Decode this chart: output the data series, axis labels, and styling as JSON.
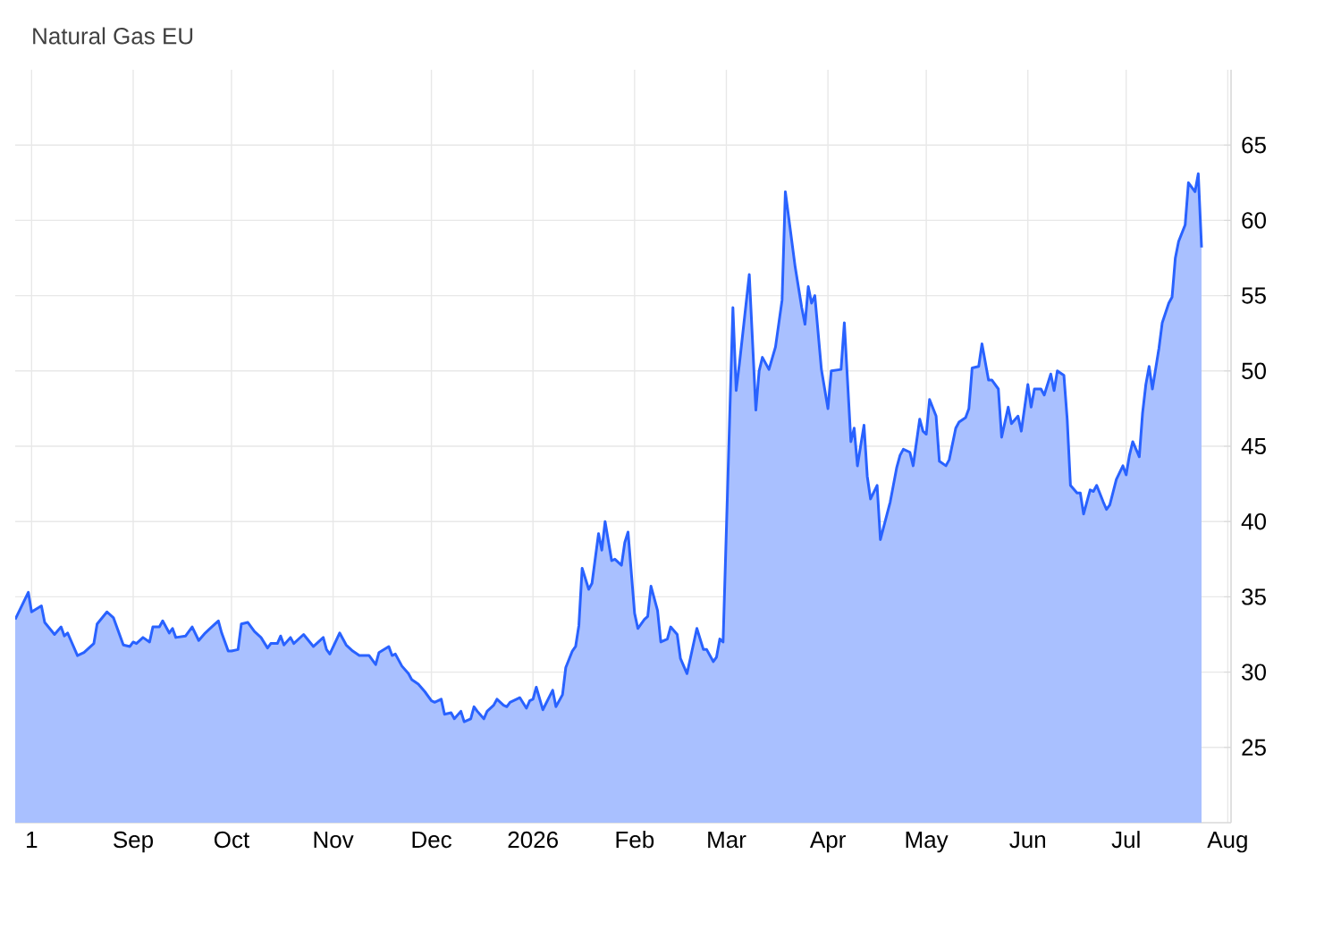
{
  "chart_data": {
    "type": "area",
    "title": "Natural Gas EU",
    "x": [
      "2025-07-27",
      "2025-07-31",
      "2025-08-01",
      "2025-08-04",
      "2025-08-05",
      "2025-08-08",
      "2025-08-10",
      "2025-08-11",
      "2025-08-12",
      "2025-08-13",
      "2025-08-15",
      "2025-08-17",
      "2025-08-20",
      "2025-08-21",
      "2025-08-24",
      "2025-08-26",
      "2025-08-29",
      "2025-08-31",
      "2025-09-01",
      "2025-09-02",
      "2025-09-04",
      "2025-09-06",
      "2025-09-07",
      "2025-09-09",
      "2025-09-10",
      "2025-09-12",
      "2025-09-13",
      "2025-09-14",
      "2025-09-17",
      "2025-09-19",
      "2025-09-21",
      "2025-09-23",
      "2025-09-24",
      "2025-09-26",
      "2025-09-27",
      "2025-09-28",
      "2025-09-30",
      "2025-10-01",
      "2025-10-03",
      "2025-10-04",
      "2025-10-06",
      "2025-10-08",
      "2025-10-10",
      "2025-10-12",
      "2025-10-13",
      "2025-10-15",
      "2025-10-16",
      "2025-10-17",
      "2025-10-19",
      "2025-10-20",
      "2025-10-23",
      "2025-10-26",
      "2025-10-27",
      "2025-10-29",
      "2025-10-30",
      "2025-10-31",
      "2025-11-03",
      "2025-11-05",
      "2025-11-07",
      "2025-11-09",
      "2025-11-12",
      "2025-11-14",
      "2025-11-15",
      "2025-11-18",
      "2025-11-19",
      "2025-11-20",
      "2025-11-22",
      "2025-11-24",
      "2025-11-25",
      "2025-11-27",
      "2025-11-29",
      "2025-12-01",
      "2025-12-02",
      "2025-12-04",
      "2025-12-05",
      "2025-12-07",
      "2025-12-08",
      "2025-12-10",
      "2025-12-11",
      "2025-12-13",
      "2025-12-14",
      "2025-12-15",
      "2025-12-17",
      "2025-12-18",
      "2025-12-20",
      "2025-12-21",
      "2025-12-23",
      "2025-12-24",
      "2025-12-25",
      "2025-12-28",
      "2025-12-30",
      "2025-12-31",
      "2026-01-01",
      "2026-01-02",
      "2026-01-04",
      "2026-01-07",
      "2026-01-08",
      "2026-01-10",
      "2026-01-11",
      "2026-01-13",
      "2026-01-14",
      "2026-01-15",
      "2026-01-16",
      "2026-01-18",
      "2026-01-19",
      "2026-01-21",
      "2026-01-22",
      "2026-01-23",
      "2026-01-25",
      "2026-01-26",
      "2026-01-28",
      "2026-01-29",
      "2026-01-30",
      "2026-02-01",
      "2026-02-02",
      "2026-02-04",
      "2026-02-05",
      "2026-02-06",
      "2026-02-08",
      "2026-02-09",
      "2026-02-11",
      "2026-02-12",
      "2026-02-14",
      "2026-02-15",
      "2026-02-17",
      "2026-02-20",
      "2026-02-22",
      "2026-02-23",
      "2026-02-25",
      "2026-02-26",
      "2026-02-27",
      "2026-02-28",
      "2026-03-03",
      "2026-03-04",
      "2026-03-05",
      "2026-03-08",
      "2026-03-10",
      "2026-03-11",
      "2026-03-12",
      "2026-03-14",
      "2026-03-16",
      "2026-03-18",
      "2026-03-19",
      "2026-03-22",
      "2026-03-24",
      "2026-03-25",
      "2026-03-26",
      "2026-03-27",
      "2026-03-28",
      "2026-03-30",
      "2026-04-01",
      "2026-04-02",
      "2026-04-05",
      "2026-04-06",
      "2026-04-08",
      "2026-04-09",
      "2026-04-10",
      "2026-04-12",
      "2026-04-13",
      "2026-04-14",
      "2026-04-16",
      "2026-04-17",
      "2026-04-20",
      "2026-04-22",
      "2026-04-23",
      "2026-04-24",
      "2026-04-26",
      "2026-04-27",
      "2026-04-29",
      "2026-04-30",
      "2026-05-01",
      "2026-05-02",
      "2026-05-04",
      "2026-05-05",
      "2026-05-07",
      "2026-05-08",
      "2026-05-10",
      "2026-05-11",
      "2026-05-13",
      "2026-05-14",
      "2026-05-15",
      "2026-05-17",
      "2026-05-18",
      "2026-05-20",
      "2026-05-21",
      "2026-05-23",
      "2026-05-24",
      "2026-05-26",
      "2026-05-27",
      "2026-05-29",
      "2026-05-30",
      "2026-06-01",
      "2026-06-02",
      "2026-06-03",
      "2026-06-05",
      "2026-06-06",
      "2026-06-08",
      "2026-06-09",
      "2026-06-10",
      "2026-06-12",
      "2026-06-13",
      "2026-06-14",
      "2026-06-16",
      "2026-06-17",
      "2026-06-18",
      "2026-06-20",
      "2026-06-21",
      "2026-06-22",
      "2026-06-24",
      "2026-06-25",
      "2026-06-26",
      "2026-06-28",
      "2026-06-30",
      "2026-07-01",
      "2026-07-02",
      "2026-07-03",
      "2026-07-05",
      "2026-07-06",
      "2026-07-07",
      "2026-07-08",
      "2026-07-09",
      "2026-07-11",
      "2026-07-12",
      "2026-07-14",
      "2026-07-15",
      "2026-07-16",
      "2026-07-17",
      "2026-07-19",
      "2026-07-20",
      "2026-07-22",
      "2026-07-23",
      "2026-07-24"
    ],
    "series": [
      {
        "color": "#2962ff",
        "values": [
          33.5,
          35.3,
          34.0,
          34.4,
          33.3,
          32.5,
          33.0,
          32.4,
          32.6,
          32.1,
          31.1,
          31.3,
          31.9,
          33.2,
          34.0,
          33.6,
          31.8,
          31.7,
          32.0,
          31.9,
          32.3,
          32.0,
          33.0,
          33.0,
          33.4,
          32.6,
          32.9,
          32.3,
          32.4,
          33.0,
          32.1,
          32.6,
          32.8,
          33.2,
          33.4,
          32.6,
          31.4,
          31.4,
          31.5,
          33.2,
          33.3,
          32.7,
          32.3,
          31.6,
          31.9,
          31.9,
          32.4,
          31.8,
          32.3,
          31.9,
          32.5,
          31.7,
          31.9,
          32.3,
          31.5,
          31.2,
          32.6,
          31.8,
          31.4,
          31.1,
          31.1,
          30.5,
          31.3,
          31.7,
          31.1,
          31.2,
          30.4,
          29.9,
          29.5,
          29.2,
          28.7,
          28.1,
          28.0,
          28.2,
          27.2,
          27.3,
          26.9,
          27.4,
          26.7,
          26.9,
          27.7,
          27.4,
          26.9,
          27.4,
          27.8,
          28.2,
          27.8,
          27.7,
          28.0,
          28.3,
          27.6,
          28.1,
          28.2,
          29.0,
          27.5,
          28.8,
          27.7,
          28.5,
          30.3,
          31.4,
          31.7,
          33.1,
          36.9,
          35.5,
          35.9,
          39.2,
          38.1,
          40.0,
          37.4,
          37.5,
          37.1,
          38.6,
          39.3,
          33.9,
          32.9,
          33.5,
          33.7,
          35.7,
          34.1,
          32.0,
          32.2,
          33.0,
          32.5,
          30.9,
          29.9,
          32.9,
          31.5,
          31.5,
          30.7,
          31.0,
          32.2,
          32.0,
          54.2,
          48.7,
          50.5,
          56.4,
          47.4,
          50.0,
          50.9,
          50.1,
          51.6,
          54.7,
          61.9,
          56.9,
          54.2,
          53.1,
          55.6,
          54.5,
          55.0,
          50.1,
          47.5,
          50.0,
          50.1,
          53.2,
          45.3,
          46.2,
          43.7,
          46.4,
          43.0,
          41.5,
          42.4,
          38.8,
          41.3,
          43.6,
          44.4,
          44.8,
          44.6,
          43.7,
          46.8,
          46.0,
          45.8,
          48.1,
          47.0,
          44.0,
          43.7,
          44.1,
          46.2,
          46.6,
          46.9,
          47.5,
          50.2,
          50.3,
          51.8,
          49.4,
          49.4,
          48.8,
          45.6,
          47.6,
          46.5,
          47.0,
          46.0,
          49.1,
          47.6,
          48.8,
          48.8,
          48.4,
          49.8,
          48.7,
          50.0,
          49.7,
          46.8,
          42.4,
          41.9,
          41.9,
          40.5,
          42.1,
          42.0,
          42.4,
          41.3,
          40.8,
          41.1,
          42.8,
          43.7,
          43.1,
          44.4,
          45.3,
          44.3,
          47.2,
          49.1,
          50.3,
          48.8,
          51.5,
          53.2,
          54.5,
          54.9,
          57.5,
          58.6,
          59.7,
          62.5,
          61.9,
          63.1,
          58.2
        ]
      }
    ],
    "xlim": [
      "2025-07-27",
      "2026-08-02"
    ],
    "xticks": [
      {
        "value": "2025-08-01",
        "label": "1"
      },
      {
        "value": "2025-09-01",
        "label": "Sep"
      },
      {
        "value": "2025-10-01",
        "label": "Oct"
      },
      {
        "value": "2025-11-01",
        "label": "Nov"
      },
      {
        "value": "2025-12-01",
        "label": "Dec"
      },
      {
        "value": "2026-01-01",
        "label": "2026"
      },
      {
        "value": "2026-02-01",
        "label": "Feb"
      },
      {
        "value": "2026-03-01",
        "label": "Mar"
      },
      {
        "value": "2026-04-01",
        "label": "Apr"
      },
      {
        "value": "2026-05-01",
        "label": "May"
      },
      {
        "value": "2026-06-01",
        "label": "Jun"
      },
      {
        "value": "2026-07-01",
        "label": "Jul"
      },
      {
        "value": "2026-08-01",
        "label": "Aug"
      }
    ],
    "ylim": [
      20,
      70
    ],
    "yticks": [
      25,
      30,
      35,
      40,
      45,
      50,
      55,
      60,
      65
    ],
    "grid": true
  }
}
